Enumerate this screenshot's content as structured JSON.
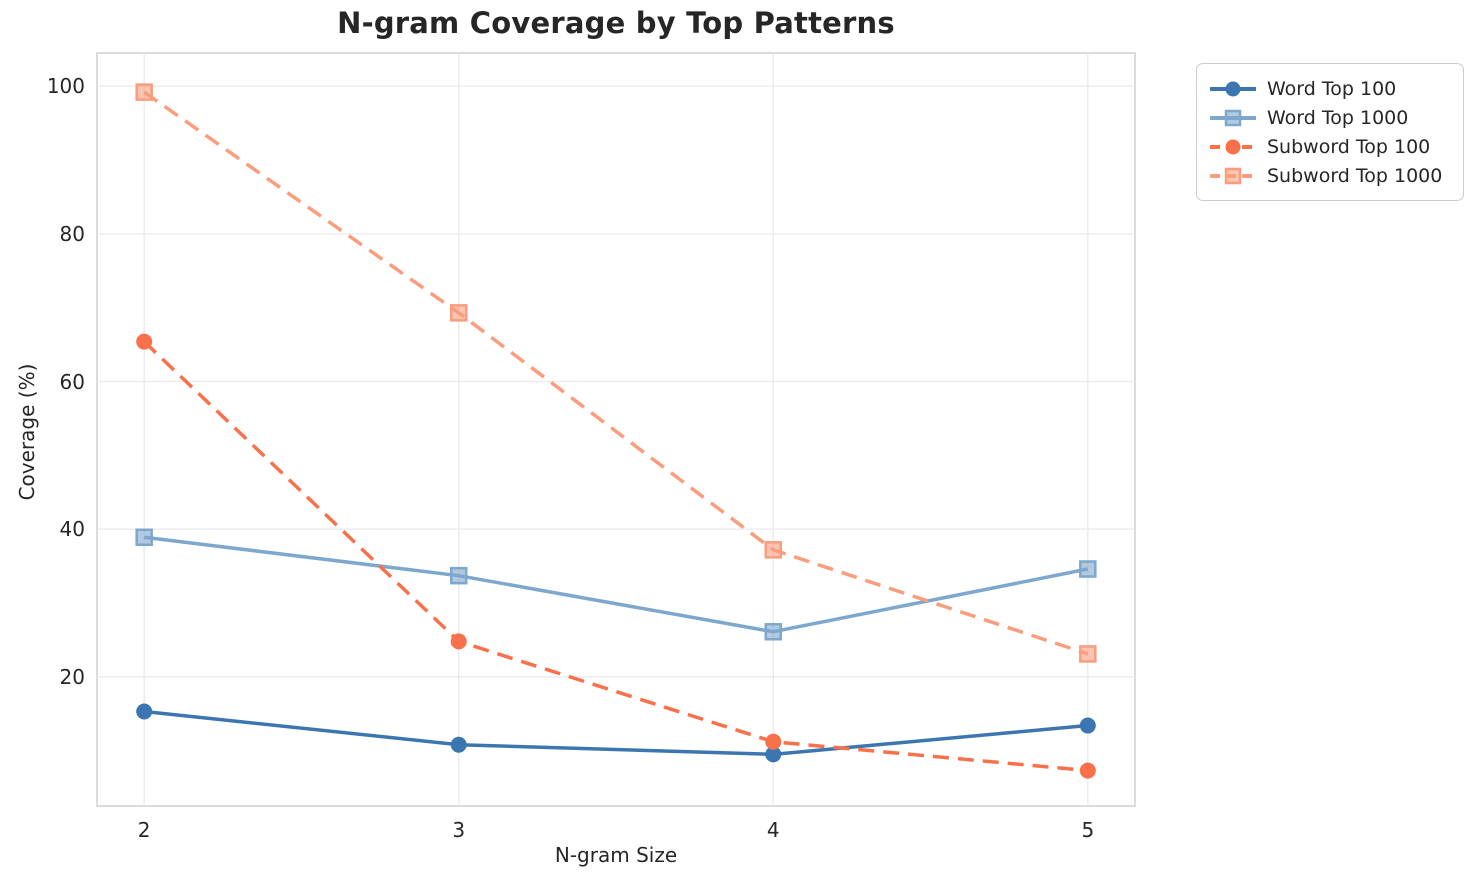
{
  "chart_data": {
    "type": "line",
    "title": "N-gram Coverage by Top Patterns",
    "xlabel": "N-gram Size",
    "ylabel": "Coverage (%)",
    "x": [
      2,
      3,
      4,
      5
    ],
    "x_ticks": [
      "2",
      "3",
      "4",
      "5"
    ],
    "y_ticks": [
      20,
      40,
      60,
      80,
      100
    ],
    "xlim": [
      1.85,
      5.15
    ],
    "ylim": [
      2.5,
      104.5
    ],
    "grid": true,
    "legend_position": "outside-upper-right",
    "series": [
      {
        "name": "Word Top 100",
        "values": [
          15.3,
          10.8,
          9.5,
          13.4
        ],
        "color": "#3c76b0",
        "line_style": "solid",
        "marker": "circle"
      },
      {
        "name": "Word Top 1000",
        "values": [
          38.9,
          33.7,
          26.1,
          34.6
        ],
        "color": "#7ea7cd",
        "line_style": "solid",
        "marker": "square"
      },
      {
        "name": "Subword Top 100",
        "values": [
          65.4,
          24.8,
          11.2,
          7.3
        ],
        "color": "#f8714b",
        "line_style": "dashed",
        "marker": "circle"
      },
      {
        "name": "Subword Top 1000",
        "values": [
          99.2,
          69.3,
          37.2,
          23.1
        ],
        "color": "#fa9d7d",
        "line_style": "dashed",
        "marker": "square"
      }
    ]
  },
  "colors": {
    "grid": "#e9e9ef",
    "plot_border": "#cfcfcf",
    "text": "#262626"
  }
}
